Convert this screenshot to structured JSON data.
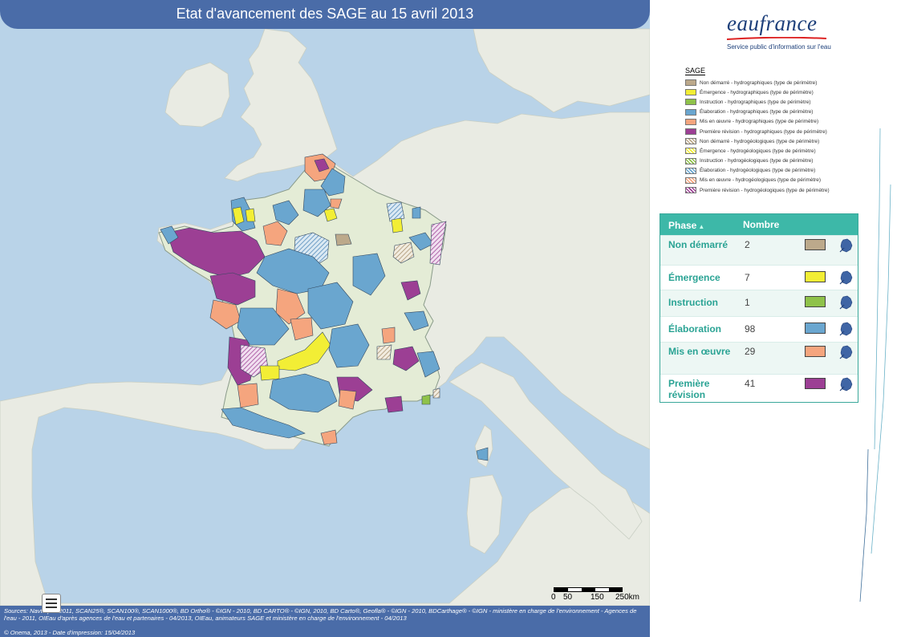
{
  "map": {
    "title": "Etat d'avancement des SAGE au 15 avril 2013",
    "scale": {
      "labels": [
        "0",
        "50",
        "150",
        "250km"
      ]
    },
    "footer": {
      "sources": "Sources: Navteq® - 2011, SCAN25®, SCAN100®, SCAN1000®, BD Ortho® - ©IGN - 2010, BD CARTO® - ©IGN, 2010, BD Carto®, Geofla® - ©IGN - 2010, BDCarthage® - ©IGN - ministère en charge de l'environnement - Agences de l'eau - 2011, OIEau d'après agences de l'eau et partenaires - 04/2013, OIEau, animateurs SAGE et ministère en charge de l'environnement - 04/2013",
      "credit": "© Onema, 2013 - Date d'impression: 15/04/2013"
    }
  },
  "logo": {
    "name": "eaufrance",
    "tagline": "Service public d'information sur l'eau"
  },
  "legend": {
    "title": "SAGE",
    "items": [
      {
        "label": "Non démarré - hydrographiques (type de périmètre)",
        "color": "#bca98b",
        "hatched": false
      },
      {
        "label": "Émergence - hydrographiques (type de périmètre)",
        "color": "#f2ee35",
        "hatched": false
      },
      {
        "label": "Instruction - hydrographiques (type de périmètre)",
        "color": "#8fc24a",
        "hatched": false
      },
      {
        "label": "Élaboration - hydrographiques (type de périmètre)",
        "color": "#6aa6cf",
        "hatched": false
      },
      {
        "label": "Mis en œuvre - hydrographiques (type de périmètre)",
        "color": "#f5a57e",
        "hatched": false
      },
      {
        "label": "Première révision - hydrographiques (type de périmètre)",
        "color": "#9c3f94",
        "hatched": false
      },
      {
        "label": "Non démarré - hydrogéologiques (type de périmètre)",
        "color": "#bca98b",
        "hatched": true
      },
      {
        "label": "Émergence - hydrogéologiques (type de périmètre)",
        "color": "#f2ee35",
        "hatched": true
      },
      {
        "label": "Instruction - hydrogéologiques (type de périmètre)",
        "color": "#8fc24a",
        "hatched": true
      },
      {
        "label": "Élaboration - hydrogéologiques (type de périmètre)",
        "color": "#6aa6cf",
        "hatched": true
      },
      {
        "label": "Mis en œuvre - hydrogéologiques (type de périmètre)",
        "color": "#f5a57e",
        "hatched": true
      },
      {
        "label": "Première révision - hydrogéologiques (type de périmètre)",
        "color": "#9c3f94",
        "hatched": true
      }
    ]
  },
  "phases": {
    "header_phase": "Phase",
    "header_count": "Nombre",
    "rows": [
      {
        "name": "Non démarré",
        "count": "2",
        "color": "#bca98b",
        "icon": "france-zoom-icon"
      },
      {
        "name": "Émergence",
        "count": "7",
        "color": "#f2ee35",
        "icon": "france-zoom-icon"
      },
      {
        "name": "Instruction",
        "count": "1",
        "color": "#8fc24a",
        "icon": "france-zoom-icon"
      },
      {
        "name": "Élaboration",
        "count": "98",
        "color": "#6aa6cf",
        "icon": "france-zoom-icon"
      },
      {
        "name": "Mis en œuvre",
        "count": "29",
        "color": "#f5a57e",
        "icon": "france-zoom-icon"
      },
      {
        "name": "Première révision",
        "count": "41",
        "color": "#9c3f94",
        "icon": "france-zoom-icon"
      }
    ]
  },
  "colors": {
    "sea": "#b9d3e8",
    "land": "#e9ebe3",
    "france": "#e4ecd6",
    "header": "#4a6ca8",
    "table_accent": "#3db8a8"
  }
}
